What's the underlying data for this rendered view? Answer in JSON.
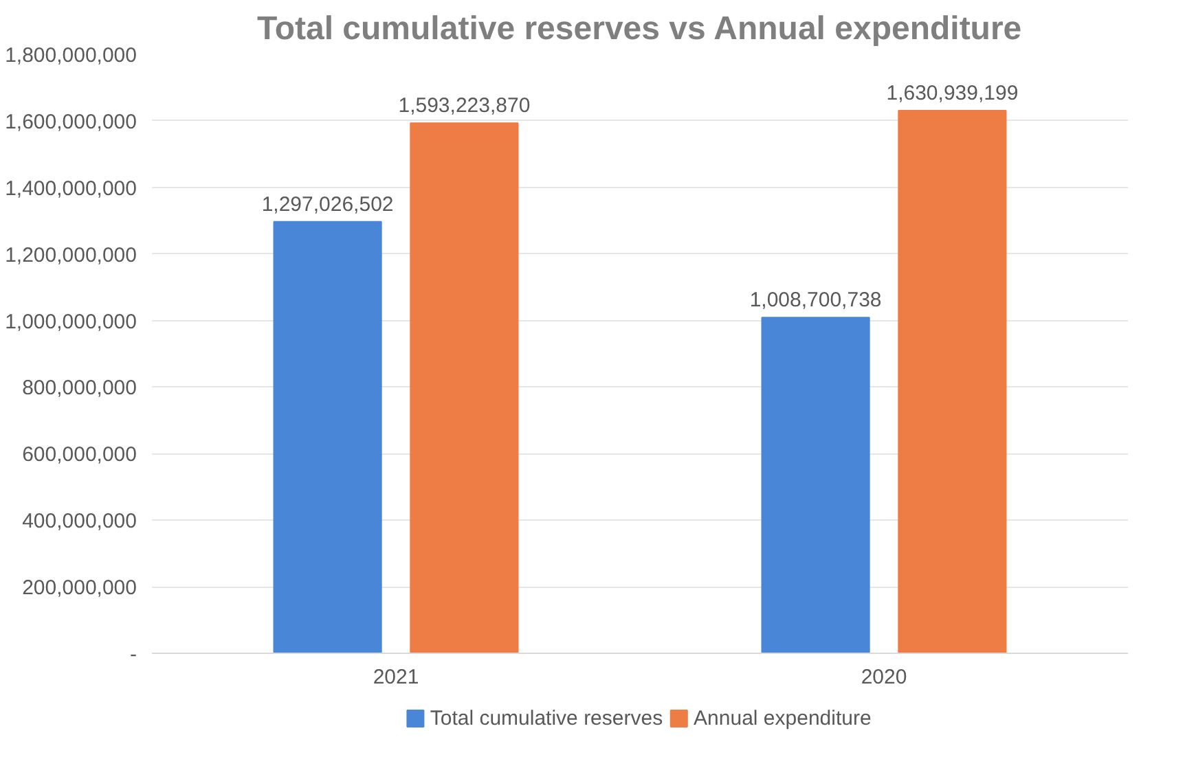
{
  "chart_data": {
    "type": "bar",
    "title": "Total cumulative reserves vs Annual expenditure",
    "categories": [
      "2021",
      "2020"
    ],
    "series": [
      {
        "name": "Total cumulative reserves",
        "color": "#4a86d8",
        "values": [
          1297026502,
          1008700738
        ],
        "value_labels": [
          "1,297,026,502",
          "1,008,700,738"
        ]
      },
      {
        "name": "Annual expenditure",
        "color": "#ed7d45",
        "values": [
          1593223870,
          1630939199
        ],
        "value_labels": [
          "1,593,223,870",
          "1,630,939,199"
        ]
      }
    ],
    "ylim": [
      0,
      1800000000
    ],
    "yticks": [
      {
        "value": 0,
        "label": "-"
      },
      {
        "value": 200000000,
        "label": "200,000,000"
      },
      {
        "value": 400000000,
        "label": "400,000,000"
      },
      {
        "value": 600000000,
        "label": "600,000,000"
      },
      {
        "value": 800000000,
        "label": "800,000,000"
      },
      {
        "value": 1000000000,
        "label": "1,000,000,000"
      },
      {
        "value": 1200000000,
        "label": "1,200,000,000"
      },
      {
        "value": 1400000000,
        "label": "1,400,000,000"
      },
      {
        "value": 1600000000,
        "label": "1,600,000,000"
      },
      {
        "value": 1800000000,
        "label": "1,800,000,000"
      }
    ],
    "grid": "y",
    "legend": "bottom"
  }
}
